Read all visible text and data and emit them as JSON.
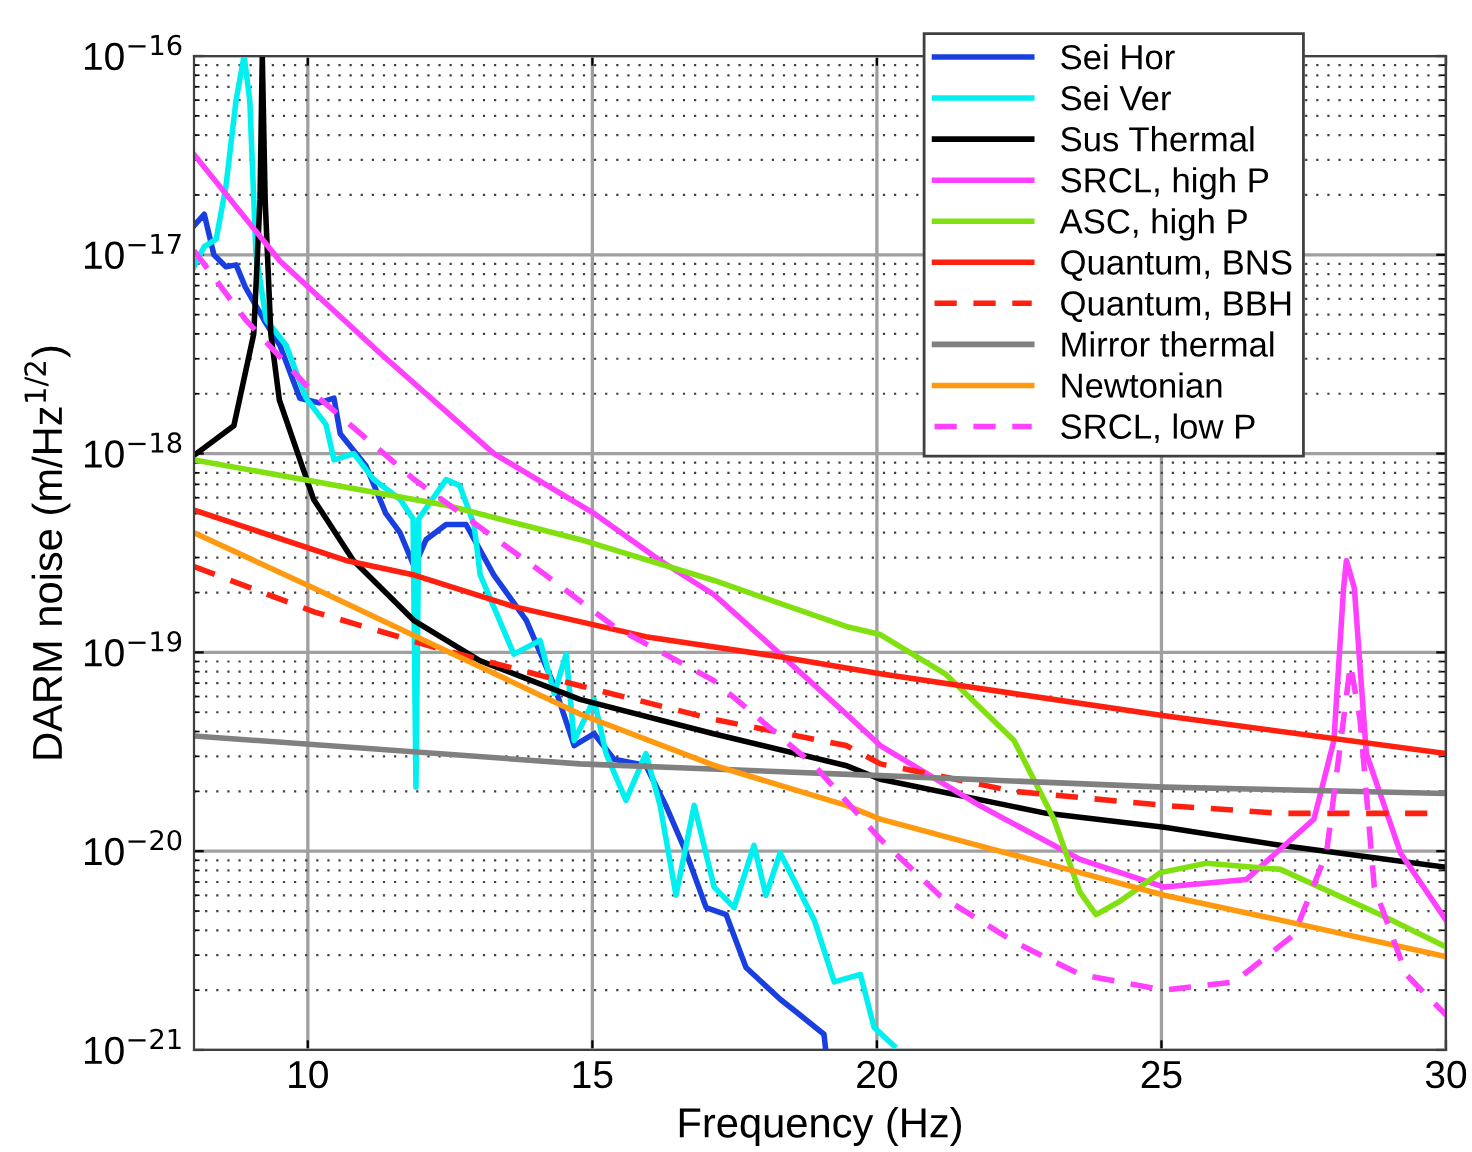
{
  "chart_data": {
    "type": "line",
    "xlabel": "Frequency (Hz)",
    "ylabel": "DARM noise (m/Hz$^{1/2}$)",
    "log": "y",
    "grid": true,
    "legend": "top right",
    "xlim": [
      8,
      30
    ],
    "xticks": [
      10,
      15,
      20,
      25,
      30
    ],
    "ylim": [
      1e-21,
      1e-16
    ],
    "yticks": [
      {
        "value": 1e-21,
        "label": "10$^{−21}$"
      },
      {
        "value": 1e-20,
        "label": "10$^{−20}$"
      },
      {
        "value": 1e-19,
        "label": "10$^{−19}$"
      },
      {
        "value": 1e-18,
        "label": "10$^{−18}$"
      },
      {
        "value": 1e-17,
        "label": "10$^{−17}$"
      },
      {
        "value": 1e-16,
        "label": "10$^{−16}$"
      }
    ],
    "series": [
      {
        "name": "Sei Hor",
        "color": "#1a3fe0",
        "line_style": "solid",
        "x": [
          8,
          8.18,
          8.35,
          8.56,
          8.74,
          8.9,
          9.23,
          9.51,
          9.86,
          10.2,
          10.46,
          10.57,
          11.02,
          11.37,
          11.62,
          11.87,
          12.08,
          12.43,
          12.78,
          13.27,
          13.84,
          14.33,
          14.68,
          15.03,
          15.38,
          15.94,
          16.29,
          16.65,
          17.0,
          17.35,
          17.7,
          18.3,
          18.65,
          19.07,
          19.1
        ],
        "values": [
          1.4e-17,
          1.6e-17,
          1e-17,
          8.7e-18,
          8.9e-18,
          6.9e-18,
          4.7e-18,
          3.5e-18,
          1.9e-18,
          1.8e-18,
          1.9e-18,
          1.26e-18,
          8.7e-19,
          5e-19,
          4e-19,
          2.7e-19,
          3.7e-19,
          4.4e-19,
          4.4e-19,
          2.45e-19,
          1.45e-19,
          6.8e-20,
          3.4e-20,
          3.9e-20,
          2.9e-20,
          2.7e-20,
          1.7e-20,
          9.8e-21,
          5.2e-21,
          4.8e-21,
          2.6e-21,
          1.8e-21,
          1.5e-21,
          1.2e-21,
          1e-21
        ]
      },
      {
        "name": "Sei Ver",
        "color": "#00f0f0",
        "line_style": "solid",
        "x": [
          8,
          8.18,
          8.39,
          8.56,
          8.74,
          8.88,
          8.98,
          9.09,
          9.27,
          9.62,
          9.97,
          10.32,
          10.46,
          10.81,
          11.16,
          11.62,
          11.85,
          11.9,
          11.95,
          12.43,
          12.67,
          12.92,
          13.03,
          13.62,
          14.08,
          14.33,
          14.54,
          14.68,
          15.03,
          15.24,
          15.59,
          15.94,
          16.19,
          16.47,
          16.79,
          17.14,
          17.49,
          17.84,
          18.05,
          18.3,
          18.9,
          19.25,
          19.71,
          19.95,
          20.3
        ],
        "values": [
          8.7e-18,
          1.1e-17,
          1.2e-17,
          2.2e-17,
          6e-17,
          1e-16,
          6e-17,
          1e-17,
          4.7e-18,
          3.5e-18,
          1.9e-18,
          1.4e-18,
          9.3e-19,
          1e-18,
          7.4e-19,
          5.9e-19,
          4.7e-19,
          2.1e-20,
          4.7e-19,
          7.4e-19,
          6.9e-19,
          4.4e-19,
          2.45e-19,
          9.8e-20,
          1.15e-19,
          6.2e-20,
          9.8e-20,
          3.6e-20,
          5.8e-20,
          3.1e-20,
          1.8e-20,
          3.1e-20,
          1.7e-20,
          6e-21,
          1.7e-20,
          6.6e-21,
          5.2e-21,
          1.07e-20,
          6e-21,
          9.8e-21,
          4.5e-21,
          2.2e-21,
          2.4e-21,
          1.3e-21,
          1.05e-21
        ]
      },
      {
        "name": "Sus Thermal",
        "color": "#000000",
        "line_style": "solid",
        "x": [
          8,
          8.7,
          9.05,
          9.16,
          9.2,
          9.25,
          9.35,
          9.5,
          10.1,
          10.8,
          11.86,
          13.02,
          14.78,
          17.13,
          19.45,
          20.06,
          22.98,
          25.05,
          27.09,
          30
        ],
        "values": [
          9.8e-19,
          1.38e-18,
          4e-18,
          1.9e-17,
          1e-16,
          1.9e-17,
          4e-18,
          1.86e-18,
          5.9e-19,
          2.9e-19,
          1.45e-19,
          9.1e-20,
          5.8e-20,
          3.9e-20,
          2.7e-20,
          2.3e-20,
          1.55e-20,
          1.32e-20,
          1.07e-20,
          8.3e-21
        ]
      },
      {
        "name": "SRCL, high P",
        "color": "#ff40ff",
        "line_style": "solid",
        "x": [
          8,
          9.51,
          11.27,
          13.27,
          15.03,
          16.19,
          17.14,
          18.3,
          19.46,
          20.06,
          21.8,
          23.57,
          25.05,
          26.49,
          27.68,
          28.03,
          28.2,
          28.25,
          28.39,
          28.6,
          29.2,
          30
        ],
        "values": [
          3.2e-17,
          9.3e-18,
          3.2e-18,
          1e-18,
          5e-19,
          2.9e-19,
          1.95e-19,
          9.8e-20,
          4.9e-20,
          3.4e-20,
          1.7e-20,
          9.1e-21,
          6.6e-21,
          7.2e-21,
          1.45e-20,
          3.6e-20,
          2.1e-19,
          2.9e-19,
          2.1e-19,
          3.1e-20,
          9.8e-21,
          4.5e-21
        ]
      },
      {
        "name": "ASC, high P",
        "color": "#80e010",
        "line_style": "solid",
        "x": [
          8,
          12.43,
          14.78,
          17.14,
          19.46,
          20.06,
          21.2,
          22.41,
          23.11,
          23.57,
          23.85,
          24.27,
          24.98,
          25.79,
          27.09,
          28.84,
          30
        ],
        "values": [
          9.3e-19,
          5.5e-19,
          3.7e-19,
          2.3e-19,
          1.35e-19,
          1.23e-19,
          7.8e-20,
          3.6e-20,
          1.45e-20,
          6.2e-21,
          4.8e-21,
          5.6e-21,
          7.8e-21,
          8.7e-21,
          8.1e-21,
          4.8e-21,
          3.3e-21
        ]
      },
      {
        "name": "Quantum, BNS",
        "color": "#ff2010",
        "line_style": "solid",
        "x": [
          8,
          10.67,
          11.87,
          13.62,
          15.94,
          18.3,
          20.06,
          25.05,
          30
        ],
        "values": [
          5.2e-19,
          2.9e-19,
          2.45e-19,
          1.7e-19,
          1.2e-19,
          9.5e-20,
          7.8e-20,
          4.8e-20,
          3.1e-20
        ]
      },
      {
        "name": "Quantum, BBH",
        "color": "#ff2010",
        "line_style": "dashed",
        "x": [
          8,
          10.11,
          12.43,
          14.78,
          17.14,
          19.46,
          20.06,
          22.41,
          25.05,
          27.09,
          29.8
        ],
        "values": [
          2.7e-19,
          1.6e-19,
          1.02e-19,
          6.8e-20,
          4.6e-20,
          3.4e-20,
          2.75e-20,
          2e-20,
          1.7e-20,
          1.55e-20,
          1.55e-20
        ]
      },
      {
        "name": "Mirror thermal",
        "color": "#808080",
        "line_style": "solid",
        "x": [
          8,
          14.78,
          20.06,
          25.05,
          30
        ],
        "values": [
          3.8e-20,
          2.75e-20,
          2.4e-20,
          2.1e-20,
          1.95e-20
        ]
      },
      {
        "name": "Newtonian",
        "color": "#ff9a10",
        "line_style": "solid",
        "x": [
          8,
          10.11,
          12.43,
          14.78,
          17.14,
          19.46,
          20.06,
          23.57,
          25.05,
          27.09,
          30
        ],
        "values": [
          4e-19,
          2.1e-19,
          1.02e-19,
          4.9e-20,
          2.7e-20,
          1.7e-20,
          1.45e-20,
          7.8e-21,
          6e-21,
          4.5e-21,
          2.95e-21
        ]
      },
      {
        "name": "SRCL, low P",
        "color": "#ff40ff",
        "line_style": "dashed",
        "x": [
          8,
          8.91,
          10.11,
          11.87,
          13.98,
          15.38,
          17.14,
          18.9,
          20.06,
          21.1,
          22.41,
          23.57,
          25.05,
          26.28,
          27.33,
          27.9,
          28.2,
          28.32,
          28.49,
          28.74,
          29.3,
          30
        ],
        "values": [
          1.05e-17,
          4.7e-18,
          2e-18,
          7.4e-19,
          2.7e-19,
          1.35e-19,
          7.2e-20,
          2.7e-20,
          1.15e-20,
          6e-21,
          3.5e-21,
          2.4e-21,
          2e-21,
          2.2e-21,
          3.8e-21,
          9.8e-21,
          4.6e-20,
          8.7e-20,
          4.6e-20,
          6.6e-21,
          2.4e-21,
          1.5e-21
        ]
      }
    ]
  }
}
